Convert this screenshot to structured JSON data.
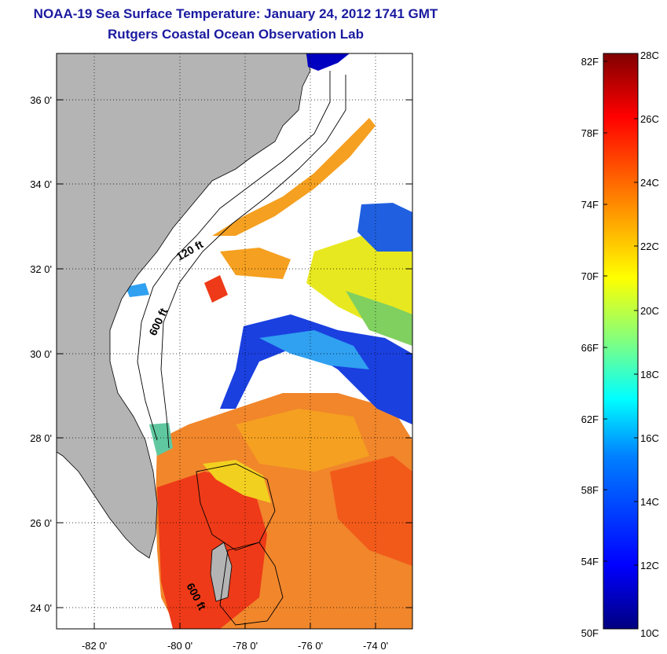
{
  "header": {
    "title": "NOAA-19 Sea Surface Temperature:  January 24, 2012 1741 GMT",
    "subtitle": "Rutgers Coastal Ocean Observation Lab"
  },
  "map": {
    "lat_labels": [
      "36 0'",
      "34 0'",
      "32 0'",
      "30 0'",
      "28 0'",
      "26 0'",
      "24 0'"
    ],
    "lon_labels": [
      "-82 0'",
      "-80 0'",
      "-78 0'",
      "-76 0'",
      "-74 0'"
    ],
    "contours": [
      "120 ft",
      "600 ft",
      "600 ft"
    ],
    "colors": {
      "land": "#b4b4b4",
      "no_data": "#ffffff",
      "grid": "#000000"
    }
  },
  "colorbar": {
    "fahrenheit_labels": [
      "82F",
      "78F",
      "74F",
      "70F",
      "66F",
      "62F",
      "58F",
      "54F",
      "50F"
    ],
    "celsius_labels": [
      "28C",
      "26C",
      "24C",
      "22C",
      "20C",
      "18C",
      "16C",
      "14C",
      "12C",
      "10C"
    ],
    "colors": [
      "#000080",
      "#0000ff",
      "#0080ff",
      "#00ffff",
      "#80ff80",
      "#ffff00",
      "#ff8000",
      "#ff0000",
      "#800000"
    ]
  }
}
